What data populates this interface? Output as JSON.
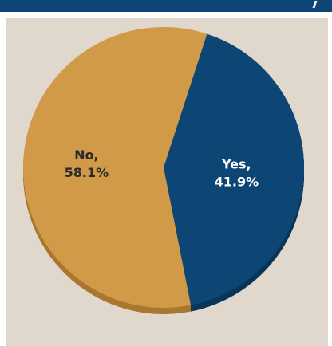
{
  "chart_data": {
    "type": "pie",
    "title": "",
    "legend": "none",
    "slices": [
      {
        "label": "Yes,",
        "percent_label": "41.9%",
        "value": 41.9,
        "color": "#0d4675",
        "side_color": "#0a3559",
        "text_color": "#ffffff"
      },
      {
        "label": "No,",
        "percent_label": "58.1%",
        "value": 58.1,
        "color": "#d09a48",
        "side_color": "#a9772f",
        "text_color": "#2a2a2a"
      }
    ]
  },
  "colors": {
    "header": "#0d4675",
    "panel_background": "#e0d8cc"
  }
}
